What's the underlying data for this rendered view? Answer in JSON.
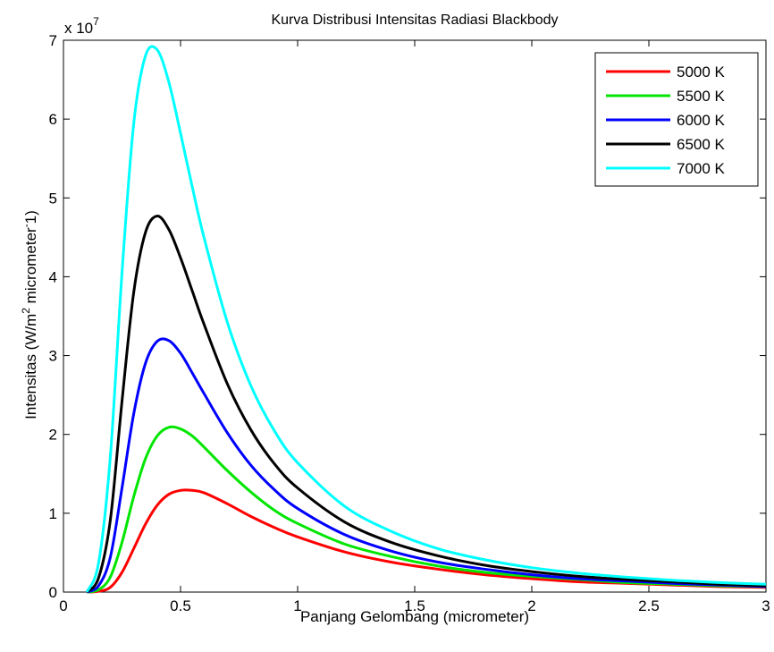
{
  "chart_data": {
    "type": "line",
    "title": "Kurva Distribusi Intensitas Radiasi Blackbody",
    "xlabel": "Panjang Gelombang (micrometer)",
    "ylabel": {
      "prefix": "Intensitas (W/m",
      "sup1": "2",
      "middle": " micrometer",
      "sup2": "-",
      "suffix": "1)"
    },
    "y_multiplier": {
      "base": "x 10",
      "exponent": "7"
    },
    "xlim": [
      0,
      3
    ],
    "ylim": [
      0,
      7
    ],
    "xticks": [
      "0",
      "0.5",
      "1",
      "1.5",
      "2",
      "2.5",
      "3"
    ],
    "yticks": [
      "0",
      "1",
      "2",
      "3",
      "4",
      "5",
      "6",
      "7"
    ],
    "grid": false,
    "legend_position": "top-right",
    "x": [
      0.1,
      0.15,
      0.2,
      0.25,
      0.3,
      0.35,
      0.4,
      0.45,
      0.5,
      0.55,
      0.6,
      0.7,
      0.8,
      0.9,
      1.0,
      1.2,
      1.4,
      1.6,
      1.8,
      2.0,
      2.2,
      2.4,
      2.6,
      2.8,
      3.0
    ],
    "series": [
      {
        "name": "5000 K",
        "color": "#ff0000",
        "values": [
          0.0,
          0.01,
          0.06,
          0.25,
          0.55,
          0.86,
          1.1,
          1.24,
          1.29,
          1.29,
          1.26,
          1.12,
          0.96,
          0.82,
          0.7,
          0.51,
          0.38,
          0.29,
          0.22,
          0.17,
          0.13,
          0.11,
          0.09,
          0.07,
          0.06
        ]
      },
      {
        "name": "5500 K",
        "color": "#00e600",
        "values": [
          0.0,
          0.03,
          0.19,
          0.63,
          1.21,
          1.69,
          1.98,
          2.09,
          2.07,
          1.98,
          1.84,
          1.54,
          1.27,
          1.04,
          0.87,
          0.61,
          0.45,
          0.33,
          0.25,
          0.2,
          0.16,
          0.12,
          0.1,
          0.08,
          0.07
        ]
      },
      {
        "name": "6000 K",
        "color": "#0000ff",
        "values": [
          0.0,
          0.08,
          0.44,
          1.32,
          2.26,
          2.9,
          3.18,
          3.19,
          3.03,
          2.78,
          2.52,
          2.02,
          1.61,
          1.3,
          1.06,
          0.73,
          0.52,
          0.38,
          0.29,
          0.22,
          0.17,
          0.14,
          0.11,
          0.09,
          0.07
        ]
      },
      {
        "name": "6500 K",
        "color": "#000000",
        "values": [
          0.0,
          0.18,
          0.91,
          2.42,
          3.8,
          4.56,
          4.77,
          4.6,
          4.24,
          3.82,
          3.4,
          2.64,
          2.06,
          1.63,
          1.32,
          0.89,
          0.63,
          0.46,
          0.34,
          0.26,
          0.2,
          0.16,
          0.13,
          0.1,
          0.08
        ]
      },
      {
        "name": "7000 K",
        "color": "#00ffff",
        "values": [
          0.0,
          0.37,
          1.71,
          4.05,
          5.94,
          6.8,
          6.88,
          6.47,
          5.82,
          5.14,
          4.5,
          3.42,
          2.62,
          2.05,
          1.64,
          1.09,
          0.77,
          0.55,
          0.41,
          0.31,
          0.24,
          0.19,
          0.15,
          0.12,
          0.1
        ]
      }
    ]
  }
}
